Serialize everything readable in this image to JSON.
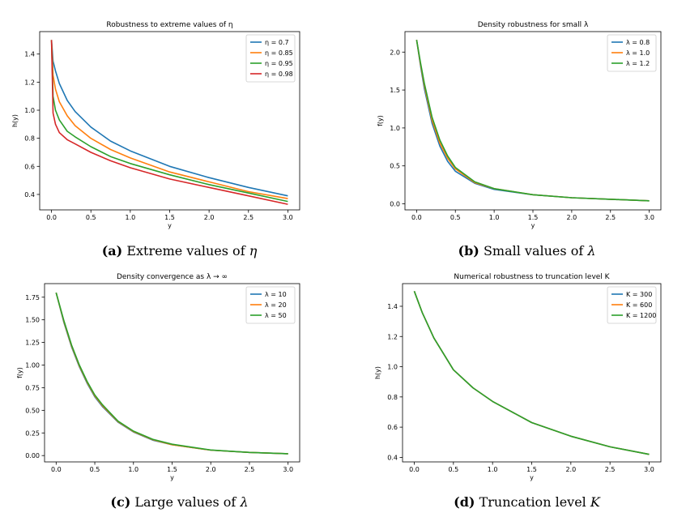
{
  "colors": {
    "blue": "#1f77b4",
    "orange": "#ff7f0e",
    "green": "#2ca02c",
    "red": "#d62728"
  },
  "captions": [
    {
      "label": "(a)",
      "text": "Extreme values of",
      "symbol": "η"
    },
    {
      "label": "(b)",
      "text": "Small values of",
      "symbol": "λ"
    },
    {
      "label": "(c)",
      "text": "Large values of",
      "symbol": "λ"
    },
    {
      "label": "(d)",
      "text": "Truncation level",
      "symbol": "K"
    }
  ],
  "chart_data": [
    {
      "type": "line",
      "title": "Robustness to extreme values of η",
      "xlabel": "y",
      "ylabel": "h(y)",
      "xlim": [
        -0.15,
        3.15
      ],
      "ylim": [
        0.29,
        1.56
      ],
      "xticks": [
        0.0,
        0.5,
        1.0,
        1.5,
        2.0,
        2.5,
        3.0
      ],
      "xtick_labels": [
        "0.0",
        "0.5",
        "1.0",
        "1.5",
        "2.0",
        "2.5",
        "3.0"
      ],
      "yticks": [
        0.4,
        0.6,
        0.8,
        1.0,
        1.2,
        1.4
      ],
      "ytick_labels": [
        "0.4",
        "0.6",
        "0.8",
        "1.0",
        "1.2",
        "1.4"
      ],
      "legend_position": "top-right",
      "x": [
        0,
        0.02,
        0.05,
        0.1,
        0.2,
        0.3,
        0.5,
        0.75,
        1.0,
        1.5,
        2.0,
        2.5,
        3.0
      ],
      "series": [
        {
          "name": "η = 0.7",
          "color": "blue",
          "values": [
            1.5,
            1.35,
            1.28,
            1.19,
            1.07,
            0.99,
            0.88,
            0.78,
            0.71,
            0.6,
            0.52,
            0.45,
            0.39
          ]
        },
        {
          "name": "η = 0.85",
          "color": "orange",
          "values": [
            1.5,
            1.25,
            1.15,
            1.06,
            0.96,
            0.89,
            0.8,
            0.72,
            0.66,
            0.56,
            0.49,
            0.42,
            0.37
          ]
        },
        {
          "name": "η = 0.95",
          "color": "green",
          "values": [
            1.5,
            1.1,
            1.0,
            0.93,
            0.85,
            0.81,
            0.74,
            0.67,
            0.62,
            0.54,
            0.47,
            0.41,
            0.35
          ]
        },
        {
          "name": "η = 0.98",
          "color": "red",
          "values": [
            1.5,
            0.98,
            0.9,
            0.84,
            0.79,
            0.76,
            0.7,
            0.64,
            0.59,
            0.51,
            0.45,
            0.39,
            0.33
          ]
        }
      ]
    },
    {
      "type": "line",
      "title": "Density robustness for small λ",
      "xlabel": "y",
      "ylabel": "f(y)",
      "xlim": [
        -0.15,
        3.15
      ],
      "ylim": [
        -0.08,
        2.27
      ],
      "xticks": [
        0.0,
        0.5,
        1.0,
        1.5,
        2.0,
        2.5,
        3.0
      ],
      "xtick_labels": [
        "0.0",
        "0.5",
        "1.0",
        "1.5",
        "2.0",
        "2.5",
        "3.0"
      ],
      "yticks": [
        0.0,
        0.5,
        1.0,
        1.5,
        2.0
      ],
      "ytick_labels": [
        "0.0",
        "0.5",
        "1.0",
        "1.5",
        "2.0"
      ],
      "legend_position": "top-right",
      "x": [
        0,
        0.05,
        0.1,
        0.2,
        0.3,
        0.4,
        0.5,
        0.75,
        1.0,
        1.5,
        2.0,
        2.5,
        3.0
      ],
      "series": [
        {
          "name": "λ = 0.8",
          "color": "blue",
          "values": [
            2.16,
            1.82,
            1.52,
            1.06,
            0.76,
            0.56,
            0.43,
            0.27,
            0.19,
            0.12,
            0.08,
            0.06,
            0.04
          ]
        },
        {
          "name": "λ = 1.0",
          "color": "orange",
          "values": [
            2.16,
            1.84,
            1.56,
            1.1,
            0.8,
            0.6,
            0.46,
            0.28,
            0.2,
            0.12,
            0.08,
            0.06,
            0.04
          ]
        },
        {
          "name": "λ = 1.2",
          "color": "green",
          "values": [
            2.16,
            1.86,
            1.59,
            1.14,
            0.84,
            0.63,
            0.48,
            0.29,
            0.2,
            0.12,
            0.08,
            0.06,
            0.04
          ]
        }
      ]
    },
    {
      "type": "line",
      "title": "Density convergence as λ → ∞",
      "xlabel": "y",
      "ylabel": "f(y)",
      "xlim": [
        -0.15,
        3.15
      ],
      "ylim": [
        -0.07,
        1.9
      ],
      "xticks": [
        0.0,
        0.5,
        1.0,
        1.5,
        2.0,
        2.5,
        3.0
      ],
      "xtick_labels": [
        "0.0",
        "0.5",
        "1.0",
        "1.5",
        "2.0",
        "2.5",
        "3.0"
      ],
      "yticks": [
        0.0,
        0.25,
        0.5,
        0.75,
        1.0,
        1.25,
        1.5,
        1.75
      ],
      "ytick_labels": [
        "0.00",
        "0.25",
        "0.50",
        "0.75",
        "1.00",
        "1.25",
        "1.50",
        "1.75"
      ],
      "legend_position": "top-right",
      "x": [
        0,
        0.1,
        0.2,
        0.3,
        0.4,
        0.5,
        0.6,
        0.8,
        1.0,
        1.25,
        1.5,
        2.0,
        2.5,
        3.0
      ],
      "series": [
        {
          "name": "λ = 10",
          "color": "blue",
          "values": [
            1.8,
            1.47,
            1.2,
            0.98,
            0.8,
            0.65,
            0.54,
            0.37,
            0.26,
            0.17,
            0.12,
            0.06,
            0.035,
            0.02
          ]
        },
        {
          "name": "λ = 20",
          "color": "orange",
          "values": [
            1.8,
            1.48,
            1.21,
            0.99,
            0.81,
            0.66,
            0.55,
            0.375,
            0.265,
            0.175,
            0.12,
            0.06,
            0.035,
            0.02
          ]
        },
        {
          "name": "λ = 50",
          "color": "green",
          "values": [
            1.8,
            1.49,
            1.22,
            1.0,
            0.82,
            0.67,
            0.56,
            0.38,
            0.27,
            0.18,
            0.125,
            0.062,
            0.035,
            0.02
          ]
        }
      ]
    },
    {
      "type": "line",
      "title": "Numerical robustness to truncation level K",
      "xlabel": "y",
      "ylabel": "h(y)",
      "xlim": [
        -0.15,
        3.15
      ],
      "ylim": [
        0.37,
        1.55
      ],
      "xticks": [
        0.0,
        0.5,
        1.0,
        1.5,
        2.0,
        2.5,
        3.0
      ],
      "xtick_labels": [
        "0.0",
        "0.5",
        "1.0",
        "1.5",
        "2.0",
        "2.5",
        "3.0"
      ],
      "yticks": [
        0.4,
        0.6,
        0.8,
        1.0,
        1.2,
        1.4
      ],
      "ytick_labels": [
        "0.4",
        "0.6",
        "0.8",
        "1.0",
        "1.2",
        "1.4"
      ],
      "legend_position": "top-right",
      "x": [
        0,
        0.1,
        0.25,
        0.5,
        0.75,
        1.0,
        1.5,
        2.0,
        2.5,
        3.0
      ],
      "series": [
        {
          "name": "K = 300",
          "color": "blue",
          "values": [
            1.5,
            1.36,
            1.19,
            0.98,
            0.86,
            0.77,
            0.63,
            0.54,
            0.47,
            0.42
          ]
        },
        {
          "name": "K = 600",
          "color": "orange",
          "values": [
            1.5,
            1.36,
            1.19,
            0.98,
            0.86,
            0.77,
            0.63,
            0.54,
            0.47,
            0.42
          ]
        },
        {
          "name": "K = 1200",
          "color": "green",
          "values": [
            1.5,
            1.36,
            1.19,
            0.98,
            0.86,
            0.77,
            0.63,
            0.54,
            0.47,
            0.42
          ]
        }
      ]
    }
  ]
}
